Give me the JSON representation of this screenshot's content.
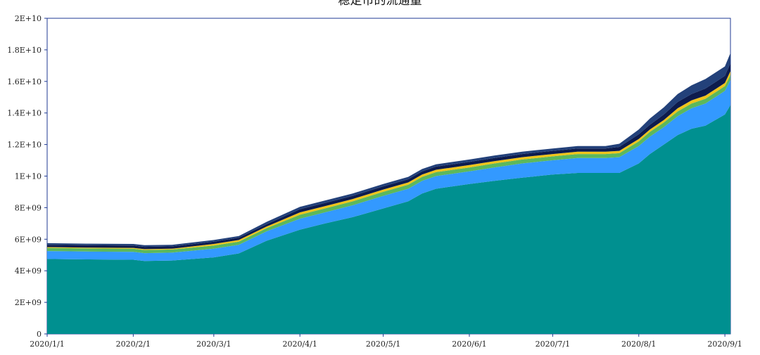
{
  "chart_data": {
    "type": "area",
    "stacked": true,
    "title": "稳定币的流通量",
    "xlabel": "",
    "ylabel": "",
    "ylim": [
      0,
      20000000000
    ],
    "y_ticks": [
      "0",
      "2E+09",
      "4E+09",
      "6E+09",
      "8E+09",
      "1E+10",
      "1.2E+10",
      "1.4E+10",
      "1.6E+10",
      "1.8E+10",
      "2E+10"
    ],
    "x_ticks": [
      "2020/1/1",
      "2020/2/1",
      "2020/3/1",
      "2020/4/1",
      "2020/5/1",
      "2020/6/1",
      "2020/7/1",
      "2020/8/1",
      "2020/9/1"
    ],
    "x": [
      "2020-01-01",
      "2020-01-15",
      "2020-02-01",
      "2020-02-05",
      "2020-02-15",
      "2020-03-01",
      "2020-03-10",
      "2020-03-20",
      "2020-04-01",
      "2020-04-10",
      "2020-04-20",
      "2020-05-01",
      "2020-05-10",
      "2020-05-15",
      "2020-05-20",
      "2020-06-01",
      "2020-06-10",
      "2020-06-20",
      "2020-07-01",
      "2020-07-10",
      "2020-07-20",
      "2020-07-25",
      "2020-08-01",
      "2020-08-05",
      "2020-08-10",
      "2020-08-15",
      "2020-08-20",
      "2020-08-25",
      "2020-09-01",
      "2020-09-03"
    ],
    "series": [
      {
        "color": "#009090",
        "values": [
          4750000000.0,
          4720000000.0,
          4700000000.0,
          4620000000.0,
          4650000000.0,
          4850000000.0,
          5100000000.0,
          5900000000.0,
          6600000000.0,
          7000000000.0,
          7400000000.0,
          7950000000.0,
          8400000000.0,
          8900000000.0,
          9200000000.0,
          9500000000.0,
          9700000000.0,
          9900000000.0,
          10100000000.0,
          10200000000.0,
          10200000000.0,
          10200000000.0,
          10800000000.0,
          11400000000.0,
          12000000000.0,
          12600000000.0,
          13000000000.0,
          13200000000.0,
          13900000000.0,
          14500000000.0
        ]
      },
      {
        "color": "#3399ff",
        "values": [
          500000000.0,
          500000000.0,
          500000000.0,
          500000000.0,
          500000000.0,
          550000000.0,
          550000000.0,
          600000000.0,
          700000000.0,
          700000000.0,
          750000000.0,
          800000000.0,
          800000000.0,
          800000000.0,
          800000000.0,
          800000000.0,
          850000000.0,
          900000000.0,
          900000000.0,
          950000000.0,
          950000000.0,
          1000000000.0,
          1100000000.0,
          1100000000.0,
          1100000000.0,
          1200000000.0,
          1300000000.0,
          1400000000.0,
          1500000000.0,
          1600000000.0
        ]
      },
      {
        "color": "#5cb85c",
        "values": [
          200000000.0,
          200000000.0,
          200000000.0,
          200000000.0,
          200000000.0,
          200000000.0,
          200000000.0,
          200000000.0,
          250000000.0,
          250000000.0,
          250000000.0,
          250000000.0,
          250000000.0,
          250000000.0,
          250000000.0,
          250000000.0,
          250000000.0,
          250000000.0,
          250000000.0,
          250000000.0,
          250000000.0,
          250000000.0,
          300000000.0,
          300000000.0,
          300000000.0,
          300000000.0,
          300000000.0,
          300000000.0,
          300000000.0,
          300000000.0
        ]
      },
      {
        "color": "#f0c419",
        "values": [
          50000000.0,
          50000000.0,
          50000000.0,
          50000000.0,
          50000000.0,
          100000000.0,
          100000000.0,
          100000000.0,
          150000000.0,
          150000000.0,
          150000000.0,
          150000000.0,
          150000000.0,
          150000000.0,
          150000000.0,
          150000000.0,
          150000000.0,
          150000000.0,
          150000000.0,
          150000000.0,
          150000000.0,
          150000000.0,
          150000000.0,
          150000000.0,
          150000000.0,
          200000000.0,
          200000000.0,
          200000000.0,
          200000000.0,
          250000000.0
        ]
      },
      {
        "color": "#0d1b4d",
        "values": [
          150000000.0,
          150000000.0,
          150000000.0,
          150000000.0,
          150000000.0,
          150000000.0,
          150000000.0,
          150000000.0,
          200000000.0,
          200000000.0,
          200000000.0,
          200000000.0,
          200000000.0,
          200000000.0,
          200000000.0,
          200000000.0,
          200000000.0,
          200000000.0,
          200000000.0,
          200000000.0,
          200000000.0,
          250000000.0,
          300000000.0,
          300000000.0,
          350000000.0,
          400000000.0,
          400000000.0,
          450000000.0,
          450000000.0,
          500000000.0
        ]
      },
      {
        "color": "#23417a",
        "values": [
          100000000.0,
          100000000.0,
          100000000.0,
          100000000.0,
          100000000.0,
          100000000.0,
          100000000.0,
          150000000.0,
          150000000.0,
          150000000.0,
          150000000.0,
          150000000.0,
          150000000.0,
          150000000.0,
          150000000.0,
          150000000.0,
          150000000.0,
          150000000.0,
          150000000.0,
          150000000.0,
          150000000.0,
          200000000.0,
          300000000.0,
          400000000.0,
          450000000.0,
          500000000.0,
          550000000.0,
          600000000.0,
          600000000.0,
          650000000.0
        ]
      }
    ]
  }
}
